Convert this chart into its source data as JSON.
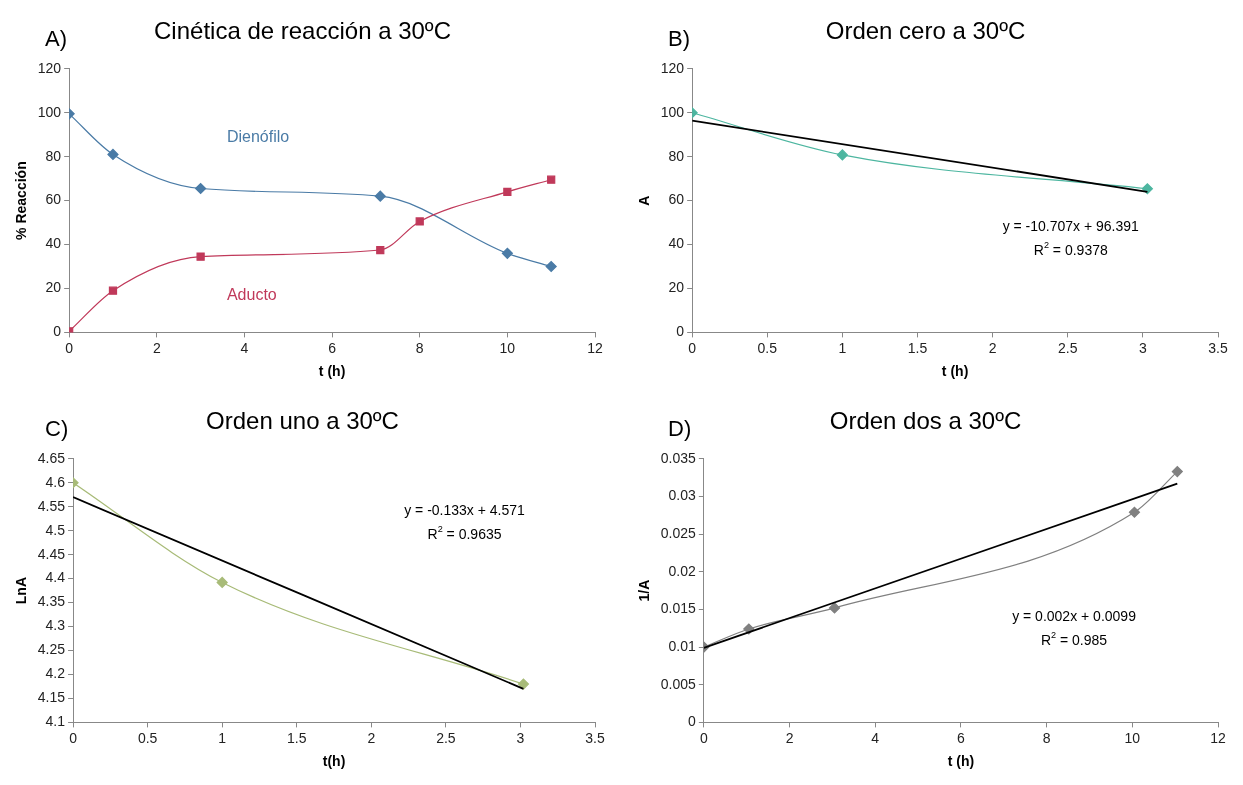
{
  "chart_data": [
    {
      "type": "line",
      "title": "Cinética de reacción a 30ºC",
      "xlabel": "t (h)",
      "ylabel": "% Reacción",
      "annotations": [
        "A)"
      ],
      "x": [
        0,
        1,
        3,
        7.1,
        8,
        10,
        11
      ],
      "series": [
        {
          "name": "Dienófilo",
          "color": "#4a7ba6",
          "marker": "diamond",
          "values": [
            99.5,
            81,
            65.5,
            62,
            null,
            36,
            30
          ]
        },
        {
          "name": "Aducto",
          "color": "#c0395a",
          "marker": "square",
          "values": [
            0.5,
            19,
            34.5,
            37.5,
            50.5,
            64,
            69.5
          ]
        }
      ],
      "xlim": [
        0,
        12
      ],
      "xticks": [
        0,
        2,
        4,
        6,
        8,
        10,
        12
      ],
      "ylim": [
        0,
        120
      ],
      "yticks": [
        0,
        20,
        40,
        60,
        80,
        100,
        120
      ],
      "grid": false,
      "legend": false
    },
    {
      "type": "line",
      "title": "Orden cero a 30ºC",
      "xlabel": "t (h)",
      "ylabel": "A",
      "annotations": [
        "B)",
        "y = -10.707x + 96.391",
        "R$^{2}$ = 0.9378"
      ],
      "x": [
        0,
        1,
        3.03
      ],
      "series": [
        {
          "color": "#4db6a0",
          "marker": "diamond",
          "values": [
            100,
            80.8,
            65.4
          ]
        },
        {
          "color": "#000000",
          "marker": "none",
          "x": [
            0,
            3.03
          ],
          "values": [
            96.4,
            64
          ]
        }
      ],
      "xlim": [
        0,
        3.5
      ],
      "xticks": [
        0,
        0.5,
        1,
        1.5,
        2,
        2.5,
        3,
        3.5
      ],
      "ylim": [
        0,
        120
      ],
      "yticks": [
        0,
        20,
        40,
        60,
        80,
        100,
        120
      ],
      "grid": false,
      "legend": false
    },
    {
      "type": "line",
      "title": "Orden uno a 30ºC",
      "xlabel": "t(h)",
      "ylabel": "LnA",
      "annotations": [
        "C)",
        "y = -0.133x + 4.571",
        "R$^{2}$ = 0.9635"
      ],
      "x": [
        0,
        1,
        3.02
      ],
      "series": [
        {
          "color": "#a8bb78",
          "marker": "diamond",
          "values": [
            4.6,
            4.392,
            4.18
          ]
        },
        {
          "color": "#000000",
          "marker": "none",
          "x": [
            0,
            3.02
          ],
          "values": [
            4.57,
            4.17
          ]
        }
      ],
      "xlim": [
        0,
        3.5
      ],
      "xticks": [
        0,
        0.5,
        1,
        1.5,
        2,
        2.5,
        3,
        3.5
      ],
      "ylim": [
        4.1,
        4.65
      ],
      "yticks": [
        4.1,
        4.15,
        4.2,
        4.25,
        4.3,
        4.35,
        4.4,
        4.45,
        4.5,
        4.55,
        4.6,
        4.65
      ],
      "grid": false,
      "legend": false
    },
    {
      "type": "line",
      "title": "Orden dos a 30ºC",
      "xlabel": "t (h)",
      "ylabel": "1/A",
      "annotations": [
        "D)",
        "y = 0.002x + 0.0099",
        "R$^{2}$ = 0.985"
      ],
      "x": [
        0,
        1.05,
        3.05,
        10.05,
        11.05
      ],
      "series": [
        {
          "color": "#808080",
          "marker": "diamond",
          "values": [
            0.01,
            0.0124,
            0.0152,
            0.0279,
            0.0333
          ]
        },
        {
          "color": "#000000",
          "marker": "none",
          "x": [
            0,
            11.05
          ],
          "values": [
            0.0099,
            0.0317
          ]
        }
      ],
      "xlim": [
        0,
        12
      ],
      "xticks": [
        0,
        2,
        4,
        6,
        8,
        10,
        12
      ],
      "ylim": [
        0,
        0.035
      ],
      "yticks": [
        0,
        0.005,
        0.01,
        0.015,
        0.02,
        0.025,
        0.03,
        0.035
      ],
      "grid": false,
      "legend": false
    }
  ]
}
